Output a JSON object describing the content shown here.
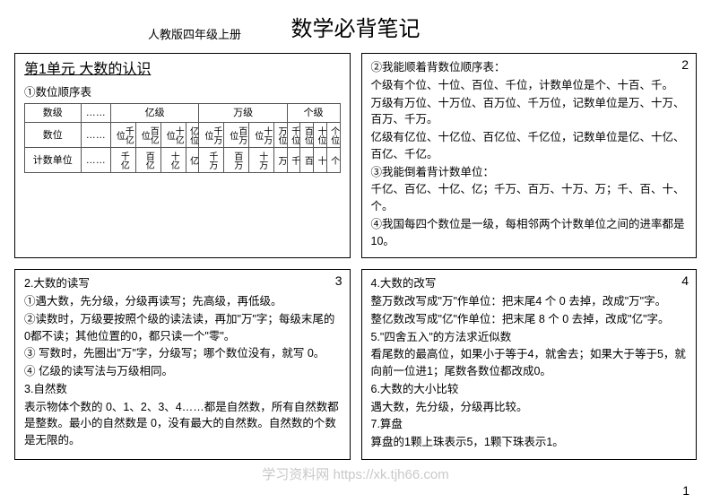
{
  "header": {
    "subtitle": "人教版四年级上册",
    "title": "数学必背笔记"
  },
  "box1": {
    "unit_title": "第1单元 大数的认识",
    "line1": "①数位顺序表",
    "table": {
      "h_grade": "数级",
      "h_dots": "……",
      "h_yi": "亿级",
      "h_wan": "万级",
      "h_ge": "个级",
      "r_digit": "数位",
      "r_unit": "计数单位",
      "digits": [
        "千亿位",
        "百亿位",
        "十亿位",
        "亿位",
        "千万位",
        "百万位",
        "十万位",
        "万位",
        "千位",
        "百位",
        "十位",
        "个位"
      ],
      "units": [
        "千亿",
        "百亿",
        "十亿",
        "亿",
        "千万",
        "百万",
        "十万",
        "万",
        "千",
        "百",
        "十",
        "个"
      ]
    }
  },
  "box2": {
    "num": "2",
    "l1": "②我能顺着背数位顺序表：",
    "l2": "个级有个位、十位、百位、千位，计数单位是个、十百、千。",
    "l3": "万级有万位、十万位、百万位、千万位，记数单位是万、十万、百万、千万。",
    "l4": "亿级有亿位、十亿位、百亿位、千亿位，记数单位是亿、十亿、百亿、千亿。",
    "l5": "③我能倒着背计数单位：",
    "l6": "千亿、百亿、十亿、亿；千万、百万、十万、万；千、百、十、个。",
    "l7": "④我国每四个数位是一级，每相邻两个计数单位之间的进率都是10。"
  },
  "box3": {
    "num": "3",
    "l1": "2.大数的读写",
    "l2": "①遇大数，先分级，分级再读写；先高级，再低级。",
    "l3": "②读数时，万级要按照个级的读法读，再加\"万\"字；每级末尾的 0都不读；其他位置的0，都只读一个\"零\"。",
    "l4": "③ 写数时，先圈出\"万\"字，分级写；哪个数位没有，就写 0。",
    "l5": "④ 亿级的读写法与万级相同。",
    "l6": "3.自然数",
    "l7": "表示物体个数的 0、1、2、3、4……都是自然数，所有自然数都是整数。最小的自然数是 0，没有最大的自然数。自然数的个数是无限的。"
  },
  "box4": {
    "num": "4",
    "l1": "4.大数的改写",
    "l2": "整万数改写成\"万\"作单位：把末尾4 个 0 去掉，改成\"万\"字。",
    "l3": "整亿数改写成\"亿\"作单位：把末尾 8 个 0 去掉，改成\"亿\"字。",
    "l4": "5.\"四舍五入\"的方法求近似数",
    "l5": "看尾数的最高位，如果小于等于4，就舍去；如果大于等于5，就向前一位进1；尾数各数位都改成0。",
    "l6": "6.大数的大小比较",
    "l7": "遇大数，先分级，分级再比较。",
    "l8": "7.算盘",
    "l9": "算盘的1颗上珠表示5，1颗下珠表示1。"
  },
  "footer": {
    "watermark": "学习资料网 https://xk.tjh66.com",
    "pagenum": "1"
  }
}
